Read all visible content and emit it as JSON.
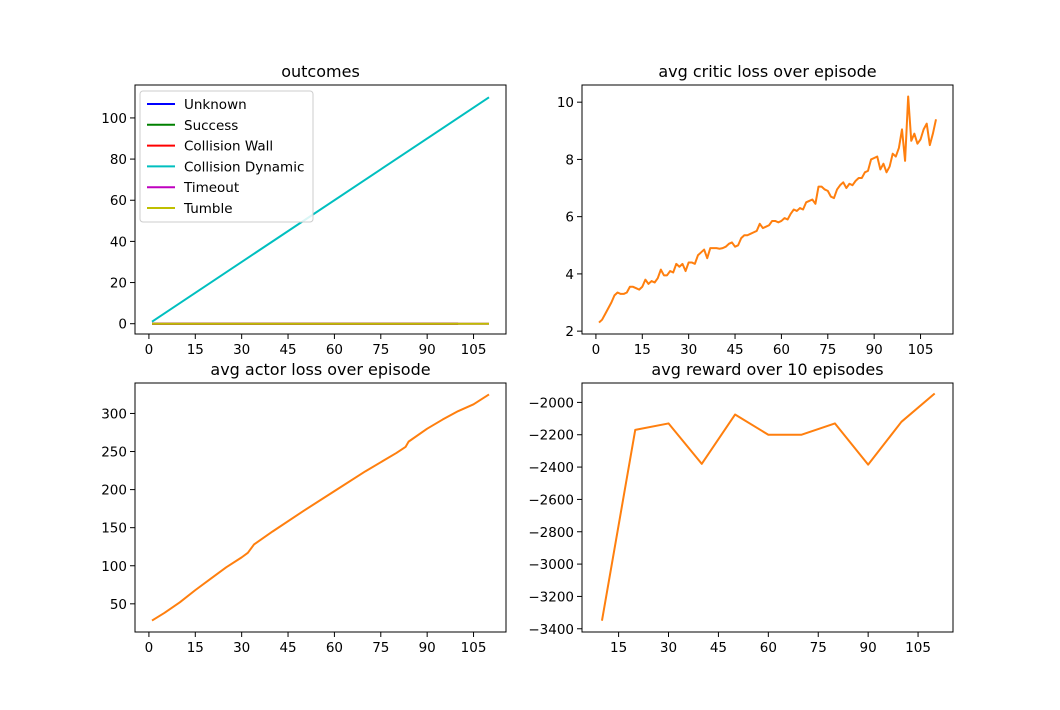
{
  "chart_data": [
    {
      "type": "line",
      "title": "outcomes",
      "xlim": [
        -4.5,
        115.5
      ],
      "ylim": [
        -5,
        116
      ],
      "xticks": [
        0,
        15,
        30,
        45,
        60,
        75,
        90,
        105
      ],
      "yticks": [
        0,
        20,
        40,
        60,
        80,
        100
      ],
      "legend": "upper-left",
      "series": [
        {
          "name": "Unknown",
          "color": "#0000ff",
          "x": [
            1,
            100
          ],
          "y": [
            0,
            0
          ]
        },
        {
          "name": "Success",
          "color": "#008000",
          "x": [
            1,
            100
          ],
          "y": [
            0,
            0
          ]
        },
        {
          "name": "Collision Wall",
          "color": "#ff0000",
          "x": [
            1,
            100
          ],
          "y": [
            0,
            0
          ]
        },
        {
          "name": "Collision Dynamic",
          "color": "#00bfbf",
          "x": [
            1,
            110
          ],
          "y": [
            1,
            110
          ]
        },
        {
          "name": "Timeout",
          "color": "#bf00bf",
          "x": [
            1,
            110
          ],
          "y": [
            0,
            0
          ]
        },
        {
          "name": "Tumble",
          "color": "#bfbf00",
          "x": [
            1,
            110
          ],
          "y": [
            0,
            0
          ]
        }
      ]
    },
    {
      "type": "line",
      "title": "avg critic loss over episode",
      "xlim": [
        -4.5,
        115.5
      ],
      "ylim": [
        1.9,
        10.6
      ],
      "xticks": [
        0,
        15,
        30,
        45,
        60,
        75,
        90,
        105
      ],
      "yticks": [
        2,
        4,
        6,
        8,
        10
      ],
      "series": [
        {
          "color": "#ff7f0e",
          "x_start": 1,
          "x_step": 1,
          "y": [
            2.3,
            2.4,
            2.6,
            2.8,
            3.0,
            3.25,
            3.35,
            3.3,
            3.3,
            3.35,
            3.55,
            3.55,
            3.5,
            3.45,
            3.55,
            3.8,
            3.65,
            3.75,
            3.7,
            3.85,
            4.15,
            3.95,
            3.95,
            4.1,
            4.05,
            4.35,
            4.25,
            4.35,
            4.1,
            4.4,
            4.4,
            4.35,
            4.65,
            4.75,
            4.85,
            4.55,
            4.9,
            4.9,
            4.9,
            4.88,
            4.9,
            4.95,
            5.05,
            5.1,
            4.95,
            5.0,
            5.25,
            5.35,
            5.35,
            5.4,
            5.45,
            5.5,
            5.75,
            5.6,
            5.65,
            5.7,
            5.85,
            5.85,
            5.8,
            5.85,
            5.95,
            5.9,
            6.1,
            6.25,
            6.2,
            6.3,
            6.25,
            6.5,
            6.55,
            6.6,
            6.45,
            7.05,
            7.05,
            6.95,
            6.9,
            6.7,
            6.65,
            6.95,
            7.1,
            7.2,
            7.0,
            7.15,
            7.1,
            7.25,
            7.35,
            7.35,
            7.55,
            7.6,
            8.0,
            8.05,
            8.1,
            7.65,
            7.85,
            7.55,
            7.75,
            8.2,
            8.1,
            8.4,
            9.05,
            7.95,
            10.2,
            8.65,
            8.9,
            8.55,
            8.7,
            9.05,
            9.25,
            8.5,
            8.9,
            9.4
          ]
        }
      ]
    },
    {
      "type": "line",
      "title": "avg actor loss over episode",
      "xlim": [
        -4.5,
        115.5
      ],
      "ylim": [
        13,
        340
      ],
      "xticks": [
        0,
        15,
        30,
        45,
        60,
        75,
        90,
        105
      ],
      "yticks": [
        50,
        100,
        150,
        200,
        250,
        300
      ],
      "series": [
        {
          "color": "#ff7f0e",
          "x": [
            1,
            5,
            10,
            15,
            20,
            25,
            30,
            32,
            34,
            40,
            50,
            60,
            70,
            80,
            83,
            84,
            90,
            95,
            100,
            105,
            110
          ],
          "y": [
            28,
            38,
            52,
            68,
            83,
            98,
            111,
            117,
            128,
            145,
            172,
            198,
            224,
            248,
            256,
            263,
            280,
            292,
            303,
            312,
            325
          ]
        }
      ]
    },
    {
      "type": "line",
      "title": "avg reward over 10 episodes",
      "xlim": [
        4,
        115.5
      ],
      "ylim": [
        -3420,
        -1880
      ],
      "xticks": [
        15,
        30,
        45,
        60,
        75,
        90,
        105
      ],
      "yticks": [
        -3400,
        -3200,
        -3000,
        -2800,
        -2600,
        -2400,
        -2200,
        -2000
      ],
      "series": [
        {
          "color": "#ff7f0e",
          "x": [
            10,
            20,
            30,
            40,
            50,
            60,
            70,
            80,
            90,
            100,
            110
          ],
          "y": [
            -3350,
            -2170,
            -2130,
            -2380,
            -2075,
            -2200,
            -2200,
            -2130,
            -2385,
            -2120,
            -1945
          ]
        }
      ]
    }
  ]
}
